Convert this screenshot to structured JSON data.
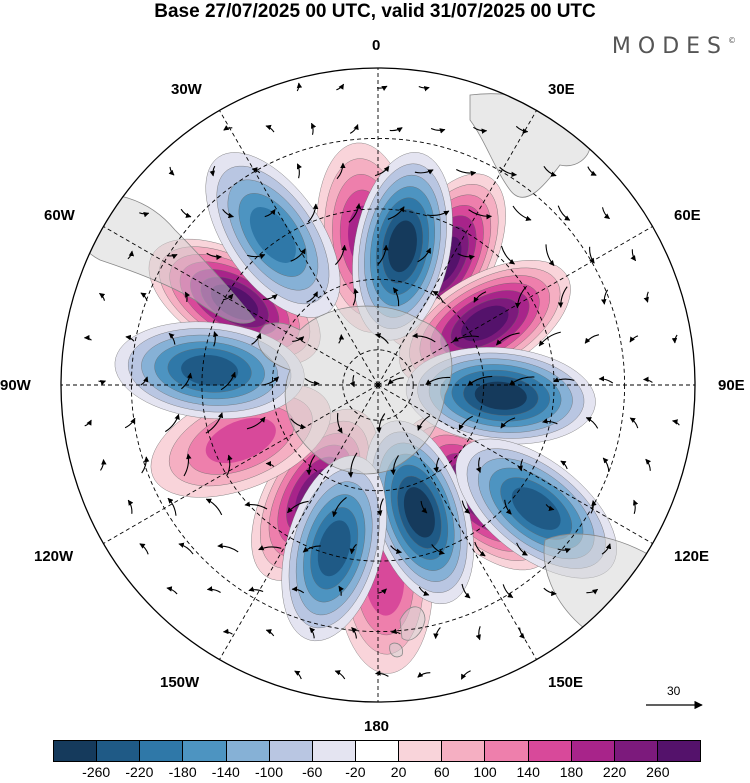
{
  "title": "Base 27/07/2025 00 UTC, valid 31/07/2025 00 UTC",
  "brand": "MODES",
  "brand_mark": "©",
  "longitude_labels": {
    "top": "0",
    "e30": "30E",
    "w30": "30W",
    "e60": "60E",
    "w60": "60W",
    "e90": "90E",
    "w90": "90W",
    "e120": "120E",
    "w120": "120W",
    "e150": "150E",
    "w150": "150W",
    "bottom": "180"
  },
  "reference_vector": {
    "label": "30"
  },
  "colorbar": {
    "ticks": [
      "-260",
      "-220",
      "-180",
      "-140",
      "-100",
      "-60",
      "-20",
      "20",
      "60",
      "100",
      "140",
      "180",
      "220",
      "260"
    ],
    "colors": [
      "#153a5c",
      "#1f5a86",
      "#2f78a8",
      "#4d94c1",
      "#86b1d6",
      "#b9c6e2",
      "#e4e4f1",
      "#ffffff",
      "#f9d4da",
      "#f5afc2",
      "#ee7fac",
      "#d8499a",
      "#a8248a",
      "#7c1a7c",
      "#54126b"
    ]
  },
  "map_features": {
    "highs": [
      {
        "lon": 28,
        "lat": -50,
        "value": 270
      },
      {
        "lon": 60,
        "lat": -55,
        "value": 270
      },
      {
        "lon": 137,
        "lat": -48,
        "value": 250
      },
      {
        "lon": -150,
        "lat": -54,
        "value": 230
      },
      {
        "lon": -60,
        "lat": -43,
        "value": 240
      },
      {
        "lon": -112,
        "lat": -48,
        "value": 150
      },
      {
        "lon": 178,
        "lat": -35,
        "value": 120
      },
      {
        "lon": -5,
        "lat": -48,
        "value": 190
      }
    ],
    "lows": [
      {
        "lon": 10,
        "lat": -50,
        "value": -260
      },
      {
        "lon": 95,
        "lat": -55,
        "value": -270
      },
      {
        "lon": 162,
        "lat": -52,
        "value": -270
      },
      {
        "lon": 128,
        "lat": -33,
        "value": -200
      },
      {
        "lon": -165,
        "lat": -42,
        "value": -200
      },
      {
        "lon": -85,
        "lat": -42,
        "value": -210
      },
      {
        "lon": -35,
        "lat": -38,
        "value": -190
      }
    ]
  }
}
